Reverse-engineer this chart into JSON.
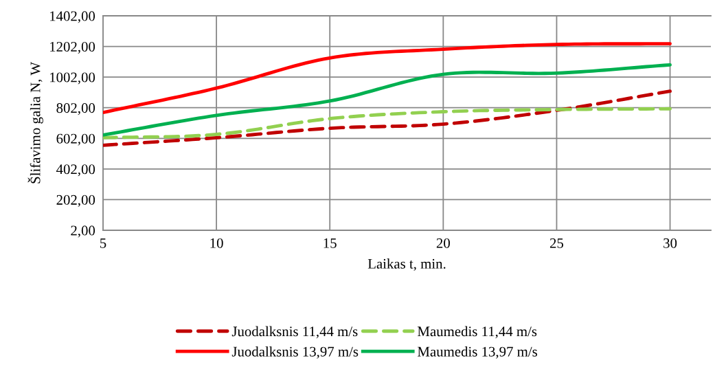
{
  "chart_data": {
    "type": "line",
    "xlabel": "Laikas t, min.",
    "ylabel": "Šlifavimo galia N, W",
    "x": [
      5,
      10,
      15,
      20,
      25,
      30
    ],
    "xlim": [
      5,
      31.8
    ],
    "xticks": [
      5,
      10,
      15,
      20,
      25,
      30
    ],
    "ylim": [
      2,
      1402
    ],
    "yticks": [
      {
        "value": 2,
        "label": "2,00"
      },
      {
        "value": 202,
        "label": "202,00"
      },
      {
        "value": 402,
        "label": "402,00"
      },
      {
        "value": 602,
        "label": "602,00"
      },
      {
        "value": 802,
        "label": "802,00"
      },
      {
        "value": 1002,
        "label": "1002,00"
      },
      {
        "value": 1202,
        "label": "1202,00"
      },
      {
        "value": 1402,
        "label": "1402,00"
      }
    ],
    "grid": true,
    "legend": "bottom",
    "series": [
      {
        "name": "Juodalksnis 11,44 m/s",
        "color": "#c00000",
        "line_style": "dashed",
        "values": [
          557,
          606,
          668,
          695,
          785,
          910
        ]
      },
      {
        "name": "Maumedis 11,44 m/s",
        "color": "#92d050",
        "line_style": "dashed",
        "values": [
          606,
          628,
          731,
          776,
          790,
          795
        ]
      },
      {
        "name": "Juodalksnis 13,97 m/s",
        "color": "#ff0000",
        "line_style": "solid",
        "values": [
          771,
          930,
          1127,
          1184,
          1215,
          1220
        ]
      },
      {
        "name": "Maumedis 13,97 m/s",
        "color": "#00b050",
        "line_style": "solid",
        "values": [
          624,
          752,
          846,
          1020,
          1028,
          1082
        ]
      }
    ]
  }
}
